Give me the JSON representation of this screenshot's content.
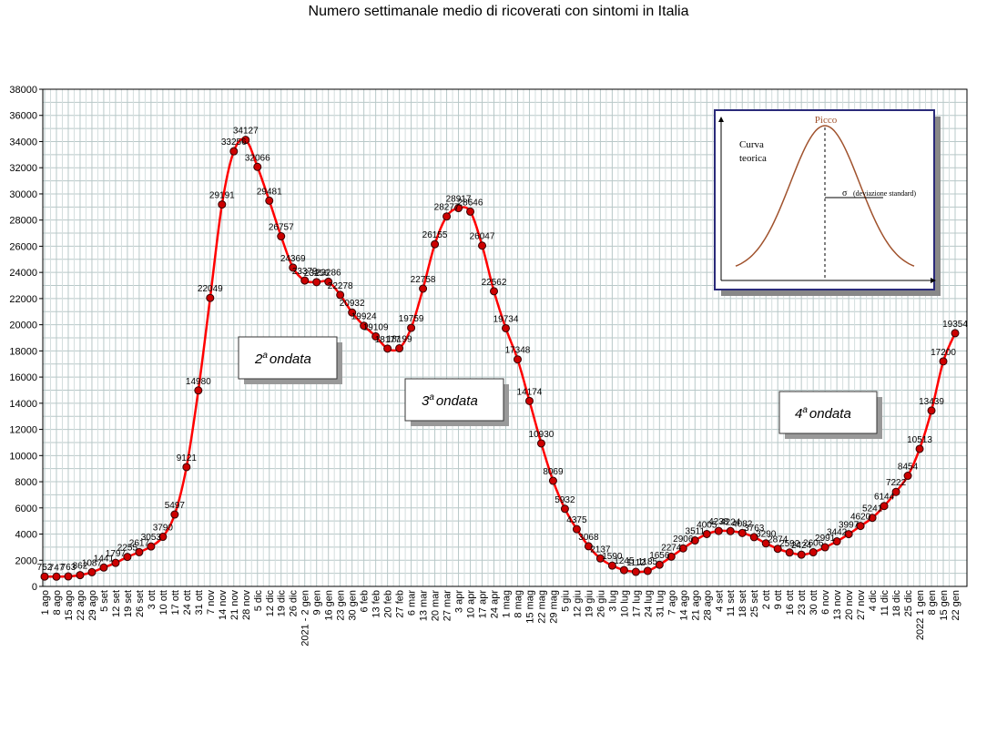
{
  "chart_data": {
    "type": "line",
    "title": "Numero settimanale medio di ricoverati con sintomi in Italia",
    "xlabel": "",
    "ylabel": "",
    "ylim": [
      0,
      38000
    ],
    "y_ticks": [
      0,
      2000,
      4000,
      6000,
      8000,
      10000,
      12000,
      14000,
      16000,
      18000,
      20000,
      22000,
      24000,
      26000,
      28000,
      30000,
      32000,
      34000,
      36000,
      38000
    ],
    "grid": true,
    "line_color": "#ff0000",
    "marker_color": "#cc0000",
    "categories": [
      "1 ago",
      "8 ago",
      "15 ago",
      "22 ago",
      "29 ago",
      "5 set",
      "12 set",
      "19 set",
      "26 set",
      "3 ott",
      "10 ott",
      "17 ott",
      "24 ott",
      "31 ott",
      "7 nov",
      "14 nov",
      "21 nov",
      "28 nov",
      "5 dic",
      "12 dic",
      "19 dic",
      "26 dic",
      "2021 - 2 gen",
      "9 gen",
      "16 gen",
      "23 gen",
      "30 gen",
      "6 feb",
      "13 feb",
      "20 feb",
      "27 feb",
      "6 mar",
      "13 mar",
      "20 mar",
      "27 mar",
      "3 apr",
      "10 apr",
      "17 apr",
      "24 apr",
      "1 mag",
      "8 mag",
      "15 mag",
      "22 mag",
      "29 mag",
      "5 giu",
      "12 giu",
      "19 giu",
      "26 giu",
      "3 lug",
      "10 lug",
      "17 lug",
      "24 lug",
      "31 lug",
      "7 ago",
      "14 ago",
      "21 ago",
      "28 ago",
      "4 set",
      "11 set",
      "18 set",
      "25 set",
      "2 ott",
      "9 ott",
      "16 ott",
      "23 ott",
      "30 ott",
      "6 nov",
      "13 nov",
      "20 nov",
      "27 nov",
      "4 dic",
      "11 dic",
      "18 dic",
      "25 dic",
      "2022 1 gen",
      "8 gen",
      "15 gen",
      "22 gen"
    ],
    "values": [
      752,
      747,
      763,
      862,
      1087,
      1441,
      1797,
      2255,
      2617,
      3053,
      3790,
      5497,
      9121,
      14980,
      22049,
      29191,
      33256,
      34127,
      32066,
      29481,
      26757,
      24369,
      23379,
      23256,
      23286,
      22278,
      20932,
      19924,
      19109,
      18177,
      18199,
      19759,
      22758,
      26155,
      28277,
      28917,
      28646,
      26047,
      22562,
      19734,
      17348,
      14174,
      10930,
      8069,
      5932,
      4375,
      3068,
      2137,
      1590,
      1245,
      1112,
      1185,
      1656,
      2274,
      2906,
      3511,
      4005,
      4238,
      4224,
      4082,
      3763,
      3290,
      2874,
      2592,
      2424,
      2606,
      2991,
      3442,
      3997,
      4620,
      5241,
      6144,
      7222,
      8454,
      10513,
      13439,
      17200,
      19354
    ]
  },
  "annotations": {
    "wave2": "ondata",
    "wave3": "ondata",
    "wave4": "ondata",
    "wave2_num": "2",
    "wave3_num": "3",
    "wave4_num": "4",
    "ordinal_suffix": "a"
  },
  "inset": {
    "peak_label": "Picco",
    "curve_label_line1": "Curva",
    "curve_label_line2": "teorica",
    "sigma_symbol": "σ",
    "sigma_label": "(deviazione standard)"
  }
}
